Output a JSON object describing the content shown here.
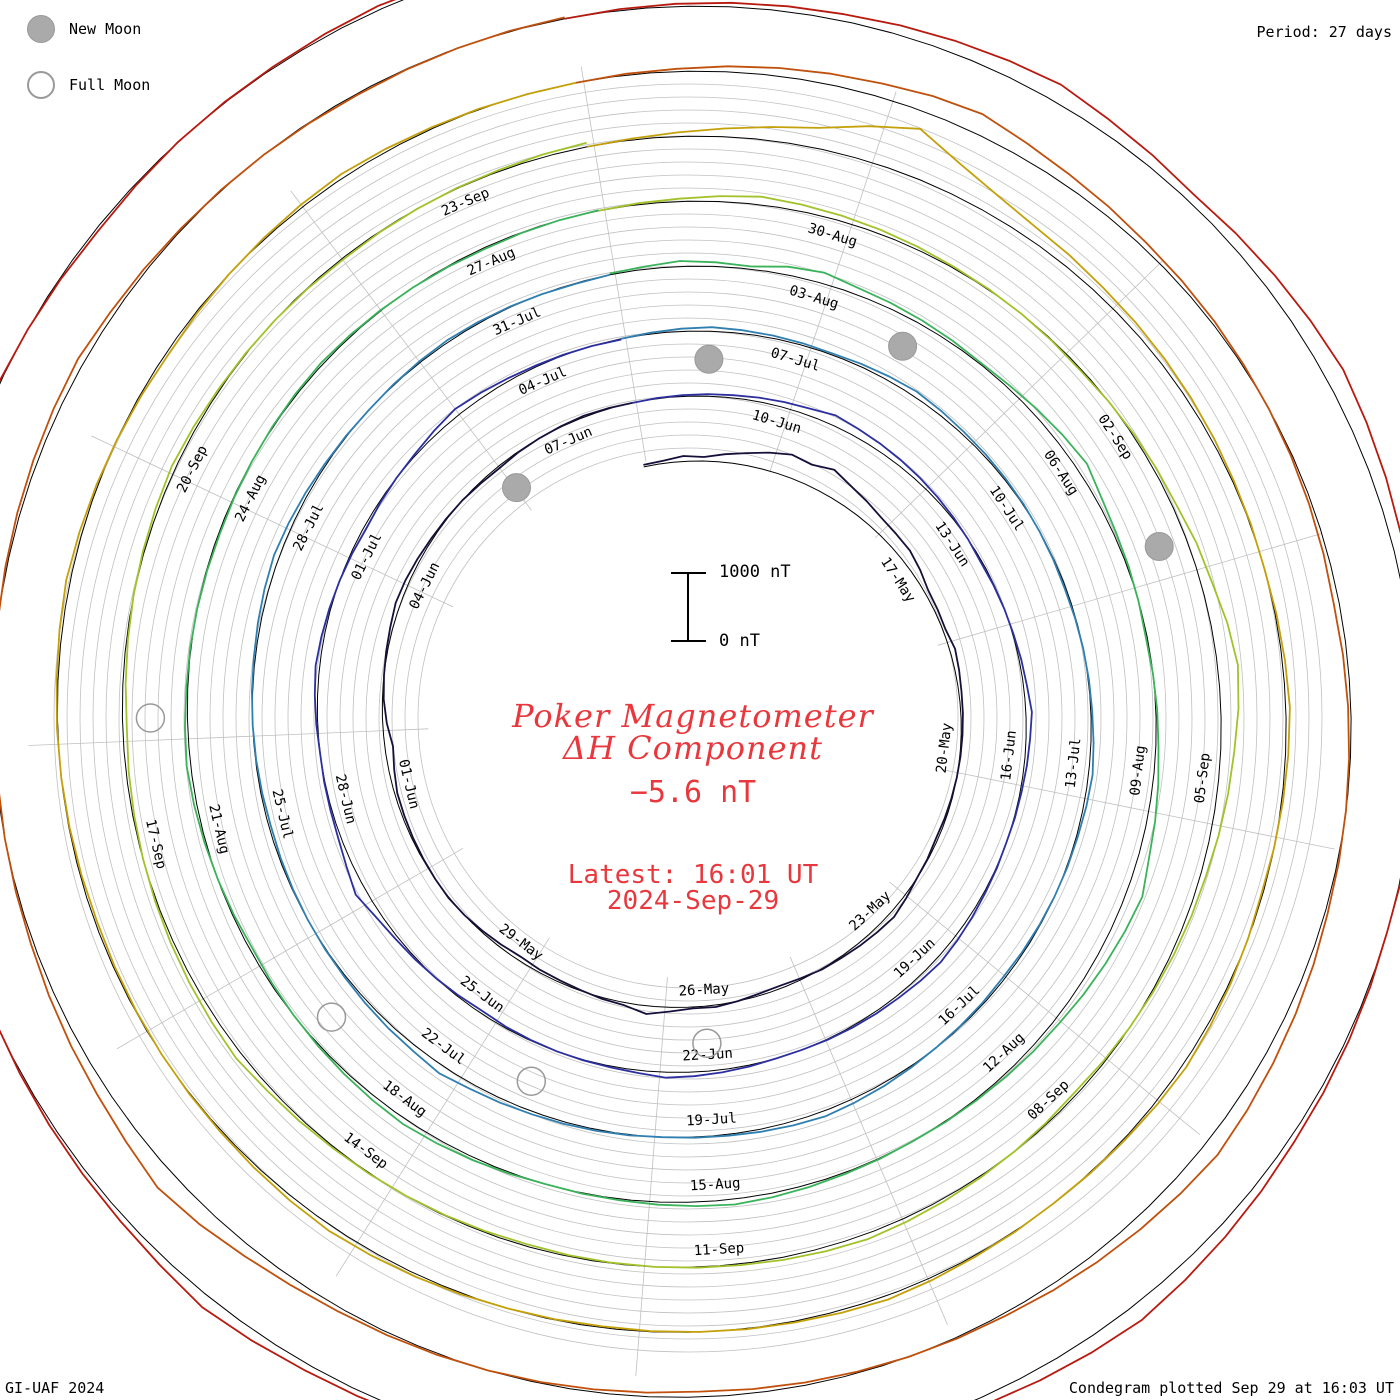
{
  "legend": {
    "new_moon_label": "New Moon",
    "full_moon_label": "Full Moon"
  },
  "period_label": "Period: 27 days",
  "title_line1": "Poker Magnetometer",
  "title_line2": "ΔH Component",
  "current_value": "−5.6 nT",
  "latest_time": "Latest: 16:01 UT",
  "latest_date": "2024-Sep-29",
  "scale": {
    "top_label": "1000 nT",
    "bottom_label": "0 nT"
  },
  "footer_left": "GI-UAF 2024",
  "footer_right": "Condegram plotted Sep 29 at 16:03 UT",
  "chart_data": {
    "type": "line",
    "plot": "condegram (spiral)",
    "period_days": 27,
    "start_date": "2024-May-12",
    "end_date": "2024-Sep-29",
    "y_unit": "nT",
    "scale_bar_nT": 1000,
    "colors": {
      "ring": "#000000",
      "grid": "#c0c0c0",
      "text": "#e8383d",
      "moon_fill": "#aaaaaa",
      "moon_stroke": "#999999"
    },
    "date_labels": [
      "17-May",
      "20-May",
      "23-May",
      "26-May",
      "29-May",
      "01-Jun",
      "04-Jun",
      "07-Jun",
      "10-Jun",
      "13-Jun",
      "16-Jun",
      "19-Jun",
      "22-Jun",
      "25-Jun",
      "28-Jun",
      "01-Jul",
      "04-Jul",
      "07-Jul",
      "10-Jul",
      "13-Jul",
      "16-Jul",
      "19-Jul",
      "22-Jul",
      "25-Jul",
      "28-Jul",
      "31-Jul",
      "03-Aug",
      "06-Aug",
      "09-Aug",
      "12-Aug",
      "15-Aug",
      "18-Aug",
      "21-Aug",
      "24-Aug",
      "27-Aug",
      "30-Aug",
      "02-Sep",
      "05-Sep",
      "08-Sep",
      "11-Sep",
      "14-Sep",
      "17-Sep",
      "20-Sep",
      "23-Sep"
    ],
    "moon_dates": [
      {
        "phase": "new",
        "date": "2024-Jun-06"
      },
      {
        "phase": "full",
        "date": "2024-Jun-22"
      },
      {
        "phase": "new",
        "date": "2024-Jul-06"
      },
      {
        "phase": "full",
        "date": "2024-Jul-21"
      },
      {
        "phase": "new",
        "date": "2024-Aug-04"
      },
      {
        "phase": "full",
        "date": "2024-Aug-19"
      },
      {
        "phase": "new",
        "date": "2024-Sep-03"
      },
      {
        "phase": "full",
        "date": "2024-Sep-18"
      }
    ],
    "series": [
      {
        "color": "#15103a",
        "values": [
          30,
          40,
          80,
          60,
          120,
          180,
          260,
          330,
          300,
          380,
          300,
          250,
          200,
          180,
          170,
          120,
          60,
          50,
          40,
          80,
          60,
          40,
          30,
          20,
          10,
          0,
          -10,
          -20,
          -30,
          -10,
          0,
          40,
          80,
          60,
          40,
          20,
          10,
          -20,
          -40,
          -30,
          0,
          30,
          20,
          60,
          120,
          40,
          20,
          -10,
          -30,
          -40,
          -60,
          -40,
          -20,
          0,
          10,
          0,
          -10,
          -20,
          -30,
          -40,
          -80,
          -120,
          -60,
          -20,
          0,
          20,
          40,
          70,
          60,
          40,
          20,
          10,
          0,
          -20,
          -30,
          -10,
          0,
          10,
          20,
          10,
          0
        ]
      },
      {
        "color": "#2b2f9f",
        "values": [
          0,
          10,
          20,
          30,
          40,
          60,
          80,
          100,
          150,
          120,
          100,
          80,
          60,
          40,
          20,
          0,
          -20,
          -10,
          0,
          10,
          30,
          50,
          90,
          60,
          40,
          20,
          10,
          0,
          10,
          20,
          40,
          60,
          80,
          60,
          40,
          30,
          20,
          10,
          0,
          0,
          20,
          40,
          60,
          80,
          40,
          20,
          10,
          0,
          -10,
          -20,
          -40,
          -20,
          0,
          20,
          40,
          80,
          160,
          90,
          40,
          20,
          10,
          0,
          20,
          40,
          60,
          40,
          20,
          0,
          -20,
          -40,
          -20,
          0,
          20,
          60,
          100,
          70,
          40,
          20,
          10,
          0,
          -10
        ]
      },
      {
        "color": "#2f7fb0",
        "values": [
          0,
          20,
          40,
          60,
          50,
          40,
          30,
          20,
          40,
          60,
          80,
          60,
          40,
          30,
          20,
          10,
          0,
          -10,
          -20,
          -10,
          0,
          10,
          20,
          40,
          60,
          40,
          20,
          10,
          0,
          -10,
          -20,
          -30,
          -20,
          -10,
          0,
          20,
          40,
          60,
          80,
          60,
          40,
          20,
          10,
          0,
          10,
          20,
          30,
          40,
          60,
          80,
          120,
          80,
          60,
          40,
          20,
          10,
          0,
          -10,
          -20,
          -30,
          -20,
          -10,
          0,
          10,
          20,
          40,
          60,
          80,
          60,
          40,
          20,
          10,
          0,
          10,
          20,
          30,
          20,
          10,
          0,
          -10,
          0
        ]
      },
      {
        "color": "#3ab35a",
        "values": [
          20,
          40,
          80,
          60,
          40,
          120,
          160,
          100,
          80,
          60,
          40,
          20,
          40,
          80,
          120,
          160,
          80,
          40,
          20,
          0,
          -20,
          0,
          20,
          40,
          80,
          120,
          160,
          240,
          200,
          160,
          120,
          80,
          60,
          40,
          20,
          10,
          0,
          10,
          20,
          40,
          60,
          80,
          60,
          40,
          20,
          10,
          0,
          20,
          40,
          60,
          80,
          60,
          40,
          20,
          0,
          -20,
          -40,
          -20,
          0,
          20,
          40,
          60,
          40,
          20,
          10,
          0,
          -10,
          -20,
          -10,
          0,
          10,
          20,
          30,
          20,
          10,
          0,
          -10,
          -20,
          -10,
          0,
          10
        ]
      },
      {
        "color": "#a2c22a",
        "values": [
          0,
          20,
          40,
          80,
          120,
          100,
          80,
          60,
          40,
          20,
          10,
          0,
          -10,
          -20,
          0,
          20,
          40,
          60,
          120,
          160,
          240,
          300,
          260,
          200,
          160,
          120,
          80,
          60,
          40,
          20,
          0,
          -20,
          -40,
          -20,
          0,
          20,
          40,
          60,
          80,
          60,
          40,
          20,
          10,
          0,
          -10,
          -20,
          -30,
          -20,
          -10,
          0,
          10,
          20,
          40,
          60,
          100,
          80,
          60,
          40,
          20,
          0,
          -20,
          -40,
          -60,
          -40,
          -20,
          0,
          20,
          40,
          60,
          40,
          20,
          10,
          0,
          -10,
          -20,
          -10,
          0,
          10,
          20,
          40,
          60
        ]
      },
      {
        "color": "#c4a10a",
        "values": [
          0,
          20,
          60,
          120,
          200,
          300,
          500,
          700,
          460,
          300,
          200,
          160,
          120,
          100,
          80,
          60,
          40,
          20,
          10,
          0,
          20,
          40,
          60,
          40,
          20,
          0,
          -20,
          0,
          20,
          40,
          60,
          40,
          20,
          10,
          0,
          10,
          20,
          40,
          60,
          40,
          20,
          10,
          0,
          -10,
          -20,
          -10,
          0,
          20,
          40,
          60,
          80,
          60,
          40,
          20,
          10,
          0,
          -10,
          -20,
          -30,
          -20,
          -10,
          0,
          10,
          20,
          40,
          60,
          40,
          20,
          0,
          -20,
          -40,
          -20,
          0,
          20,
          40,
          60,
          40,
          20,
          10,
          0,
          0
        ]
      },
      {
        "color": "#c0500c",
        "values": [
          0,
          20,
          40,
          80,
          120,
          160,
          200,
          260,
          300,
          220,
          160,
          120,
          80,
          60,
          40,
          20,
          0,
          -20,
          -40,
          -60,
          -80,
          -60,
          -40,
          -20,
          0,
          20,
          40,
          80,
          120,
          160,
          200,
          240,
          200,
          160,
          120,
          80,
          40,
          20,
          0,
          -20,
          -40,
          -60,
          -80,
          -60,
          -40,
          -20,
          0,
          20,
          40,
          60,
          100,
          160,
          240,
          300,
          220,
          160,
          120,
          80,
          40,
          20,
          0,
          -20,
          -40,
          -20,
          0,
          20,
          40,
          60,
          80,
          100,
          60,
          40,
          20,
          10,
          0,
          -10,
          -20,
          -10,
          0,
          10,
          20
        ]
      },
      {
        "color": "#b81a10",
        "values": [
          0,
          20,
          40,
          60,
          80,
          100,
          140,
          180,
          220,
          260,
          200,
          160,
          120,
          160,
          200,
          240,
          280,
          240,
          200,
          160,
          120,
          100,
          80,
          60,
          40,
          20,
          0,
          20,
          40,
          60,
          80,
          120,
          160,
          200,
          240,
          200,
          160,
          120,
          100,
          80,
          60,
          40,
          20,
          10,
          0,
          20,
          40,
          60,
          80,
          100,
          140,
          180,
          120,
          80,
          60,
          40,
          20,
          0,
          -20,
          -40,
          -20,
          0,
          20,
          40,
          60,
          80,
          60,
          40,
          20,
          0,
          -20,
          -40,
          -20,
          0,
          10,
          20,
          40,
          60,
          40,
          20,
          10
        ]
      }
    ]
  }
}
